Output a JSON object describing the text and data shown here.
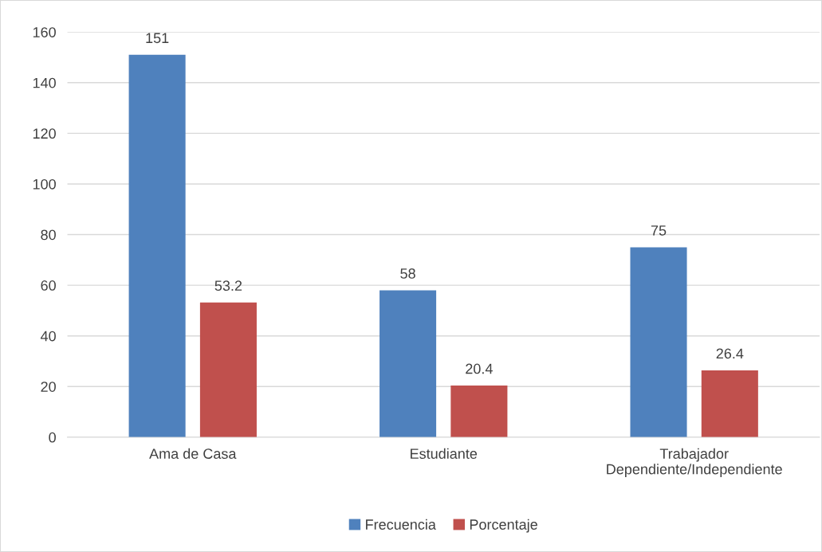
{
  "chart_data": {
    "type": "bar",
    "categories": [
      "Ama de Casa",
      "Estudiante",
      "Trabajador\nDependiente/Independiente"
    ],
    "series": [
      {
        "name": "Frecuencia",
        "color": "#4f81bd",
        "values": [
          151,
          58,
          75
        ]
      },
      {
        "name": "Porcentaje",
        "color": "#c0504d",
        "values": [
          53.2,
          20.4,
          26.4
        ]
      }
    ],
    "ylim": [
      0,
      160
    ],
    "yticks": [
      0,
      20,
      40,
      60,
      80,
      100,
      120,
      140,
      160
    ],
    "grid": "y",
    "legend": "bottom",
    "data_labels": true
  }
}
